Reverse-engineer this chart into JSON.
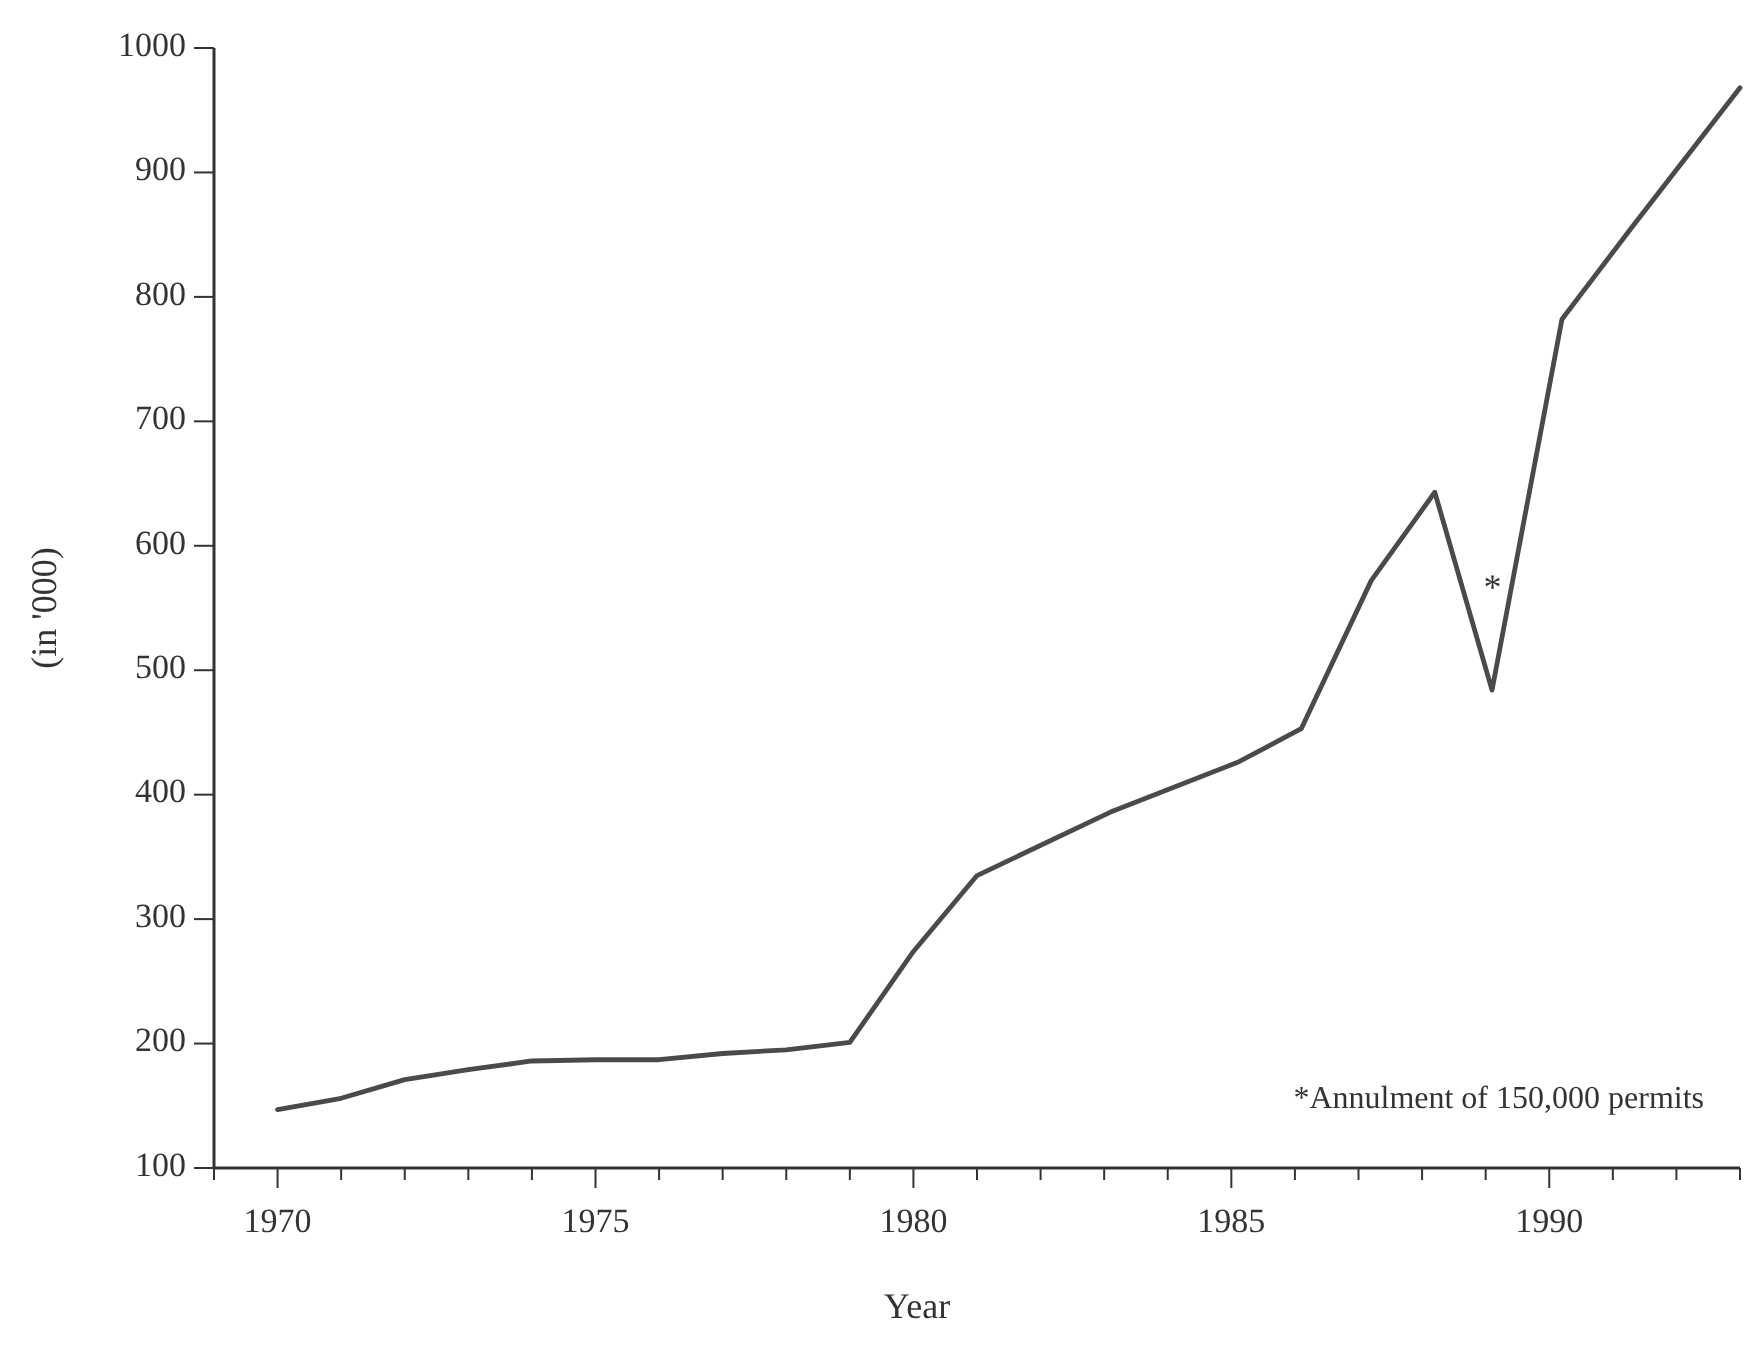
{
  "chart_data": {
    "type": "line",
    "xlabel": "Year",
    "ylabel": "(in '000)",
    "x": [
      1970,
      1971,
      1972,
      1973,
      1974,
      1975,
      1976,
      1977,
      1978,
      1979,
      1980,
      1981,
      1983.1,
      1985.1,
      1986.1,
      1987.2,
      1988.2,
      1989.1,
      1990.2,
      1991.3,
      1993
    ],
    "series": [
      {
        "color": "#4a4a4a",
        "values": [
          147,
          156,
          171,
          179,
          186,
          187,
          187,
          192,
          195,
          201,
          274,
          335,
          386,
          426,
          453,
          572,
          643,
          484,
          782,
          856,
          968
        ]
      }
    ],
    "xlim": [
      1969,
      1993
    ],
    "xticks": [
      {
        "value": 1969,
        "label": null
      },
      1970,
      {
        "value": 1971,
        "label": null
      },
      {
        "value": 1972,
        "label": null
      },
      {
        "value": 1973,
        "label": null
      },
      {
        "value": 1974,
        "label": null
      },
      1975,
      {
        "value": 1976,
        "label": null
      },
      {
        "value": 1977,
        "label": null
      },
      {
        "value": 1978,
        "label": null
      },
      {
        "value": 1979,
        "label": null
      },
      1980,
      {
        "value": 1981,
        "label": null
      },
      {
        "value": 1982,
        "label": null
      },
      {
        "value": 1983,
        "label": null
      },
      {
        "value": 1984,
        "label": null
      },
      1985,
      {
        "value": 1986,
        "label": null
      },
      {
        "value": 1987,
        "label": null
      },
      {
        "value": 1988,
        "label": null
      },
      {
        "value": 1989,
        "label": null
      },
      1990,
      {
        "value": 1991,
        "label": null
      },
      {
        "value": 1992,
        "label": null
      },
      {
        "value": 1993,
        "label": null
      }
    ],
    "ylim": [
      100,
      1000
    ],
    "yticks": [
      100,
      200,
      300,
      400,
      500,
      600,
      700,
      800,
      900,
      1000
    ],
    "marker": "none",
    "line_style": "solid",
    "annotations": [
      "*",
      "*Annulment of 150,000 permits"
    ]
  }
}
